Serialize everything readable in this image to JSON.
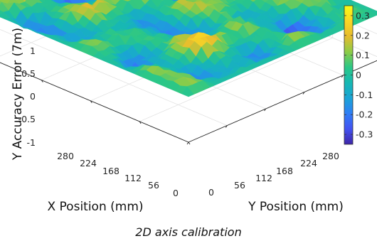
{
  "caption": "2D axis calibration",
  "chart_data": {
    "type": "surface",
    "title": "",
    "xlabel": "X Position (mm)",
    "ylabel": "Y Position (mm)",
    "zlabel": "Y Accuracy Error (7m)",
    "x_ticks": [
      "0",
      "56",
      "112",
      "168",
      "224",
      "280"
    ],
    "y_ticks": [
      "0",
      "56",
      "112",
      "168",
      "224",
      "280"
    ],
    "z_ticks": [
      "-1",
      "-0.5",
      "0",
      "0.5",
      "1"
    ],
    "xlim": [
      0,
      280
    ],
    "ylim": [
      0,
      280
    ],
    "zlim": [
      -1,
      1
    ],
    "colorbar": {
      "ticks": [
        "-0.3",
        "-0.2",
        "-0.1",
        "0",
        "0.1",
        "0.2",
        "0.3"
      ],
      "range": [
        -0.35,
        0.35
      ],
      "colormap": "parula",
      "stops": [
        "#3e26a8",
        "#4352f1",
        "#2f7ef6",
        "#1aa4d6",
        "#17b8b3",
        "#2bc787",
        "#8dcc47",
        "#e6bc2e",
        "#fad625",
        "#f9fb15"
      ]
    },
    "grid": true,
    "surface_z_range": [
      -0.35,
      0.35
    ]
  }
}
